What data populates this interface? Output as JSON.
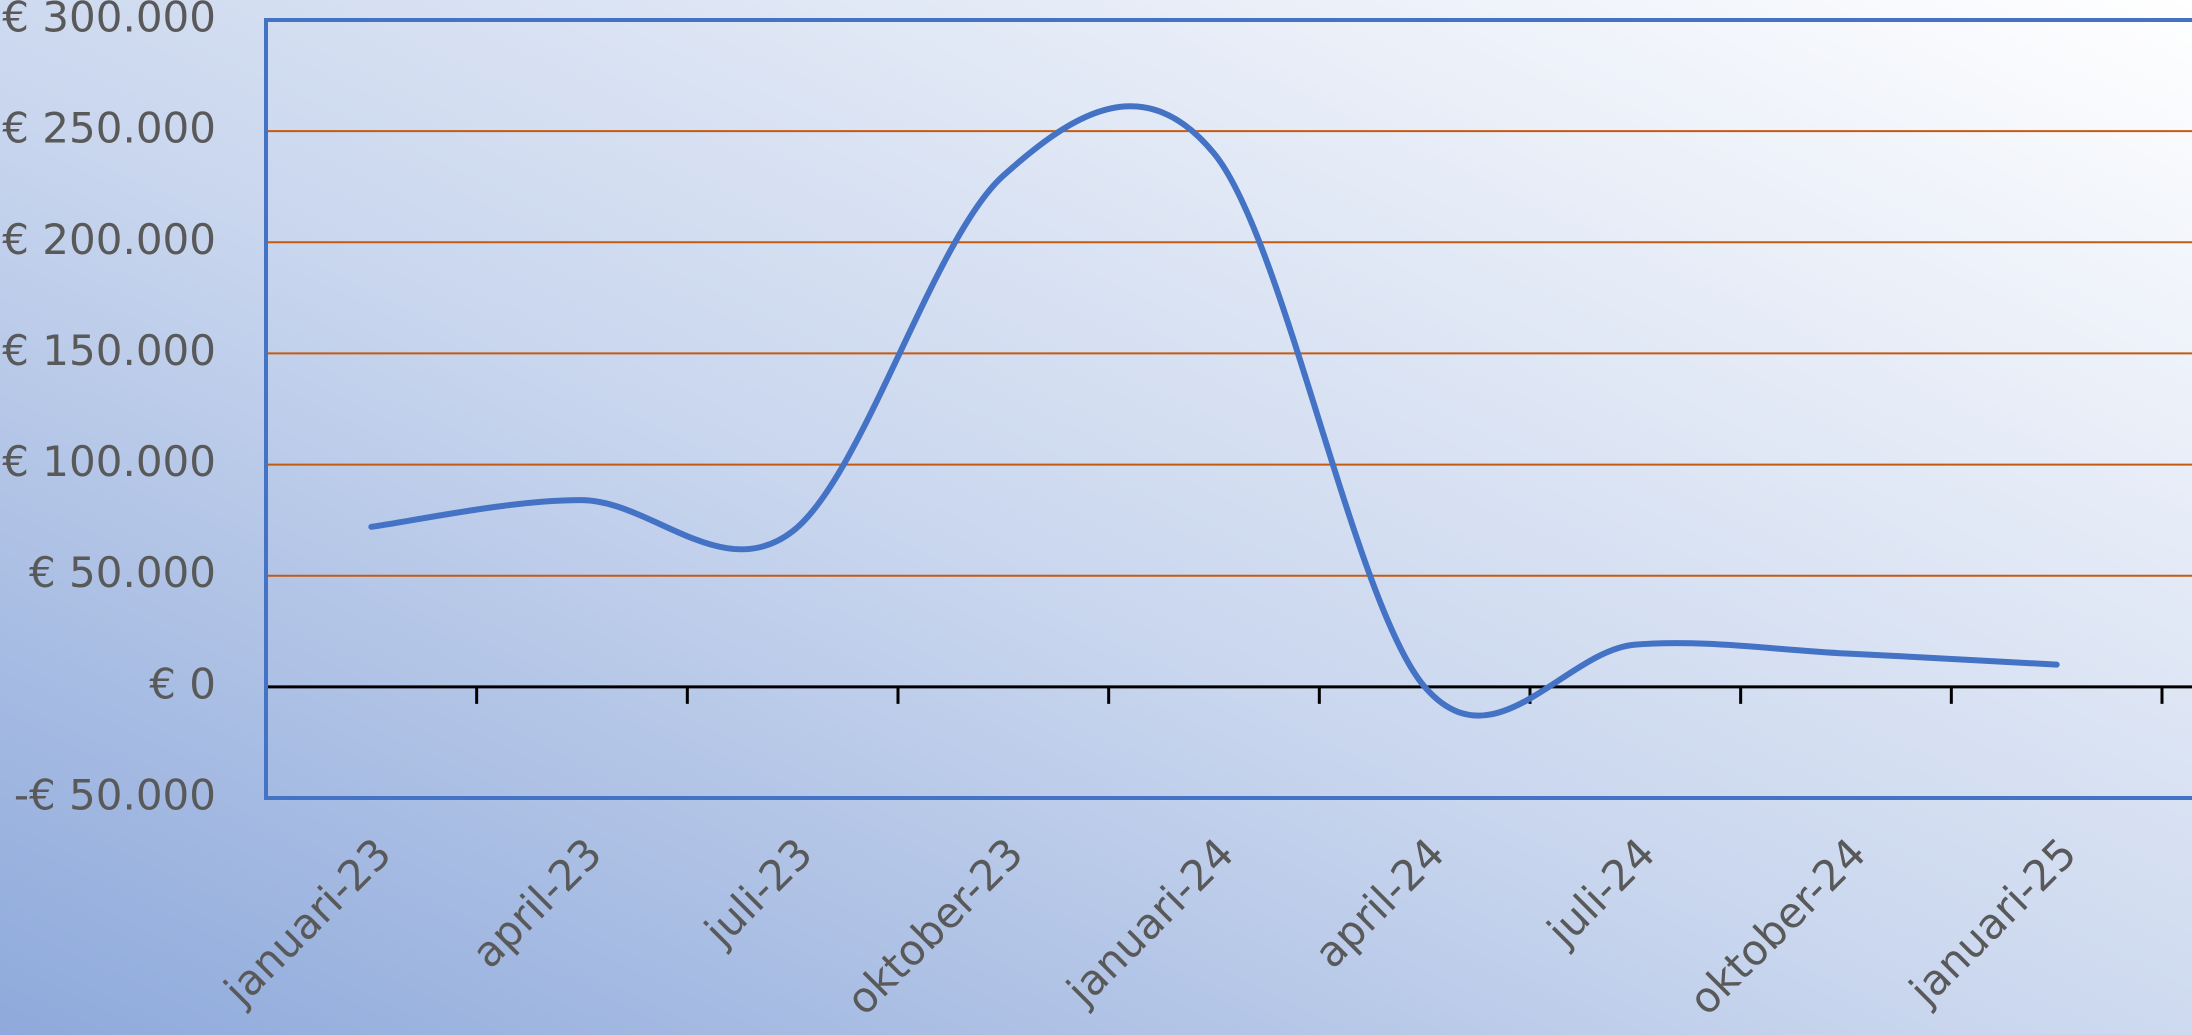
{
  "chart_data": {
    "type": "line",
    "categories": [
      "januari-23",
      "april-23",
      "juli-23",
      "oktober-23",
      "januari-24",
      "april-24",
      "juli-24",
      "oktober-24",
      "januari-25"
    ],
    "series": [
      {
        "color": "#4472c4",
        "values": [
          72000,
          84000,
          70000,
          230000,
          240000,
          0,
          19000,
          15000,
          10000
        ]
      }
    ],
    "smooth": true,
    "ylim": [
      -50000,
      300000
    ],
    "yticks": [
      {
        "value": -50000,
        "label": "-€ 50.000"
      },
      {
        "value": 0,
        "label": "€ 0"
      },
      {
        "value": 50000,
        "label": "€ 50.000"
      },
      {
        "value": 100000,
        "label": "€ 100.000"
      },
      {
        "value": 150000,
        "label": "€ 150.000"
      },
      {
        "value": 200000,
        "label": "€ 200.000"
      },
      {
        "value": 250000,
        "label": "€ 250.000"
      },
      {
        "value": 300000,
        "label": "€ 300.000"
      }
    ],
    "grid": true,
    "grid_color": "#c55a11",
    "zero_line_color": "#000000",
    "frame_color": "#4472c4"
  }
}
